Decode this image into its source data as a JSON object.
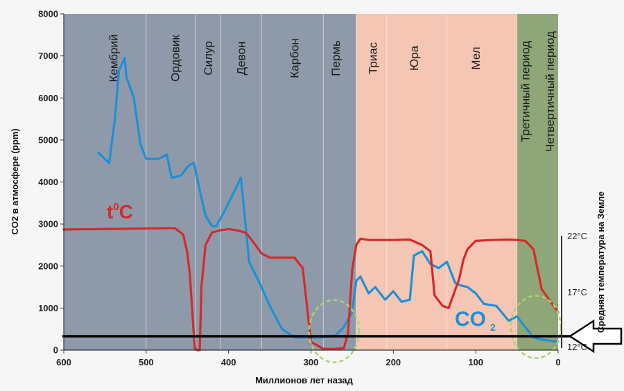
{
  "chart_data": {
    "type": "line",
    "title": "",
    "xlabel": "Миллионов лет назад",
    "ylabel": "CO2 в атмосфере (ppm)",
    "y2label": "Средняя температура на Земле",
    "xlim": [
      600,
      0
    ],
    "ylim": [
      0,
      8000
    ],
    "x_ticks": [
      600,
      500,
      400,
      300,
      200,
      100,
      0
    ],
    "y_ticks": [
      0,
      1000,
      2000,
      3000,
      4000,
      5000,
      6000,
      7000,
      8000
    ],
    "temperature_ticks": [
      "22°C",
      "17°C",
      "12°C"
    ],
    "era_bands": [
      {
        "from": 600,
        "to": 245,
        "color": "#8e9aa9"
      },
      {
        "from": 245,
        "to": 50,
        "color": "#f5c6b3"
      },
      {
        "from": 50,
        "to": 0,
        "color": "#8ea678"
      }
    ],
    "periods": [
      {
        "name": "Кембрий",
        "center": 540
      },
      {
        "name": "Ордовик",
        "center": 465
      },
      {
        "name": "Силур",
        "center": 425
      },
      {
        "name": "Девон",
        "center": 385
      },
      {
        "name": "Карбон",
        "center": 320
      },
      {
        "name": "Пермь",
        "center": 270
      },
      {
        "name": "Триас",
        "center": 225
      },
      {
        "name": "Юра",
        "center": 175
      },
      {
        "name": "Мел",
        "center": 100
      },
      {
        "name": "Третичный период",
        "center": 40
      },
      {
        "name": "Четвертичный период",
        "center": 10
      }
    ],
    "period_boundaries": [
      500,
      440,
      410,
      360,
      285,
      245,
      208,
      135,
      50
    ],
    "series": [
      {
        "name": "CO2",
        "label": "CO",
        "label_sub": "2",
        "color": "#1e8fd6",
        "x": [
          558,
          545,
          538,
          533,
          526,
          524,
          515,
          507,
          500,
          490,
          485,
          475,
          469,
          458,
          448,
          442,
          435,
          428,
          420,
          415,
          405,
          395,
          385,
          375,
          370,
          360,
          350,
          335,
          320,
          300,
          285,
          270,
          260,
          250,
          245,
          240,
          230,
          222,
          210,
          200,
          190,
          180,
          175,
          165,
          155,
          145,
          135,
          125,
          120,
          110,
          100,
          90,
          75,
          60,
          50,
          40,
          30,
          20,
          0
        ],
        "values": [
          4700,
          4450,
          5500,
          6650,
          6950,
          6500,
          6000,
          4900,
          4550,
          4550,
          4550,
          4650,
          4100,
          4150,
          4400,
          4450,
          3800,
          3200,
          2950,
          2950,
          3300,
          3700,
          4100,
          2100,
          1900,
          1500,
          1050,
          500,
          300,
          300,
          300,
          350,
          550,
          900,
          1650,
          1750,
          1350,
          1500,
          1200,
          1400,
          1150,
          1200,
          2250,
          2350,
          2050,
          1950,
          2100,
          1600,
          1550,
          1500,
          1350,
          1100,
          1050,
          700,
          800,
          550,
          300,
          250,
          200
        ]
      },
      {
        "name": "Temperature",
        "label": "t",
        "label_sup": "0",
        "label_tail": "C",
        "color": "#d42a2a",
        "x": [
          600,
          470,
          465,
          455,
          450,
          447,
          444,
          441,
          438,
          435,
          433,
          428,
          420,
          410,
          400,
          390,
          380,
          375,
          360,
          350,
          335,
          320,
          310,
          300,
          285,
          270,
          260,
          255,
          250,
          245,
          240,
          230,
          200,
          180,
          165,
          155,
          150,
          140,
          133,
          120,
          115,
          110,
          100,
          80,
          60,
          50,
          40,
          30,
          20,
          0
        ],
        "values": [
          2870,
          2900,
          2900,
          2750,
          2300,
          1800,
          900,
          50,
          0,
          0,
          1500,
          2500,
          2800,
          2850,
          2880,
          2850,
          2800,
          2700,
          2300,
          2200,
          2200,
          2200,
          1950,
          200,
          30,
          30,
          50,
          400,
          1900,
          2500,
          2650,
          2620,
          2620,
          2630,
          2500,
          2350,
          1300,
          1050,
          1000,
          1700,
          2150,
          2400,
          2600,
          2620,
          2630,
          2620,
          2600,
          2400,
          1450,
          900
        ]
      }
    ],
    "annotations": [
      {
        "type": "dashed-ellipse",
        "center_x": 272,
        "center_ppm": 450,
        "color": "#a8d66a"
      },
      {
        "type": "dashed-ellipse",
        "center_x": 27,
        "center_ppm": 550,
        "color": "#a8d66a"
      },
      {
        "type": "horizontal-arrow",
        "value": 330,
        "direction": "left",
        "color": "#000000"
      }
    ]
  }
}
